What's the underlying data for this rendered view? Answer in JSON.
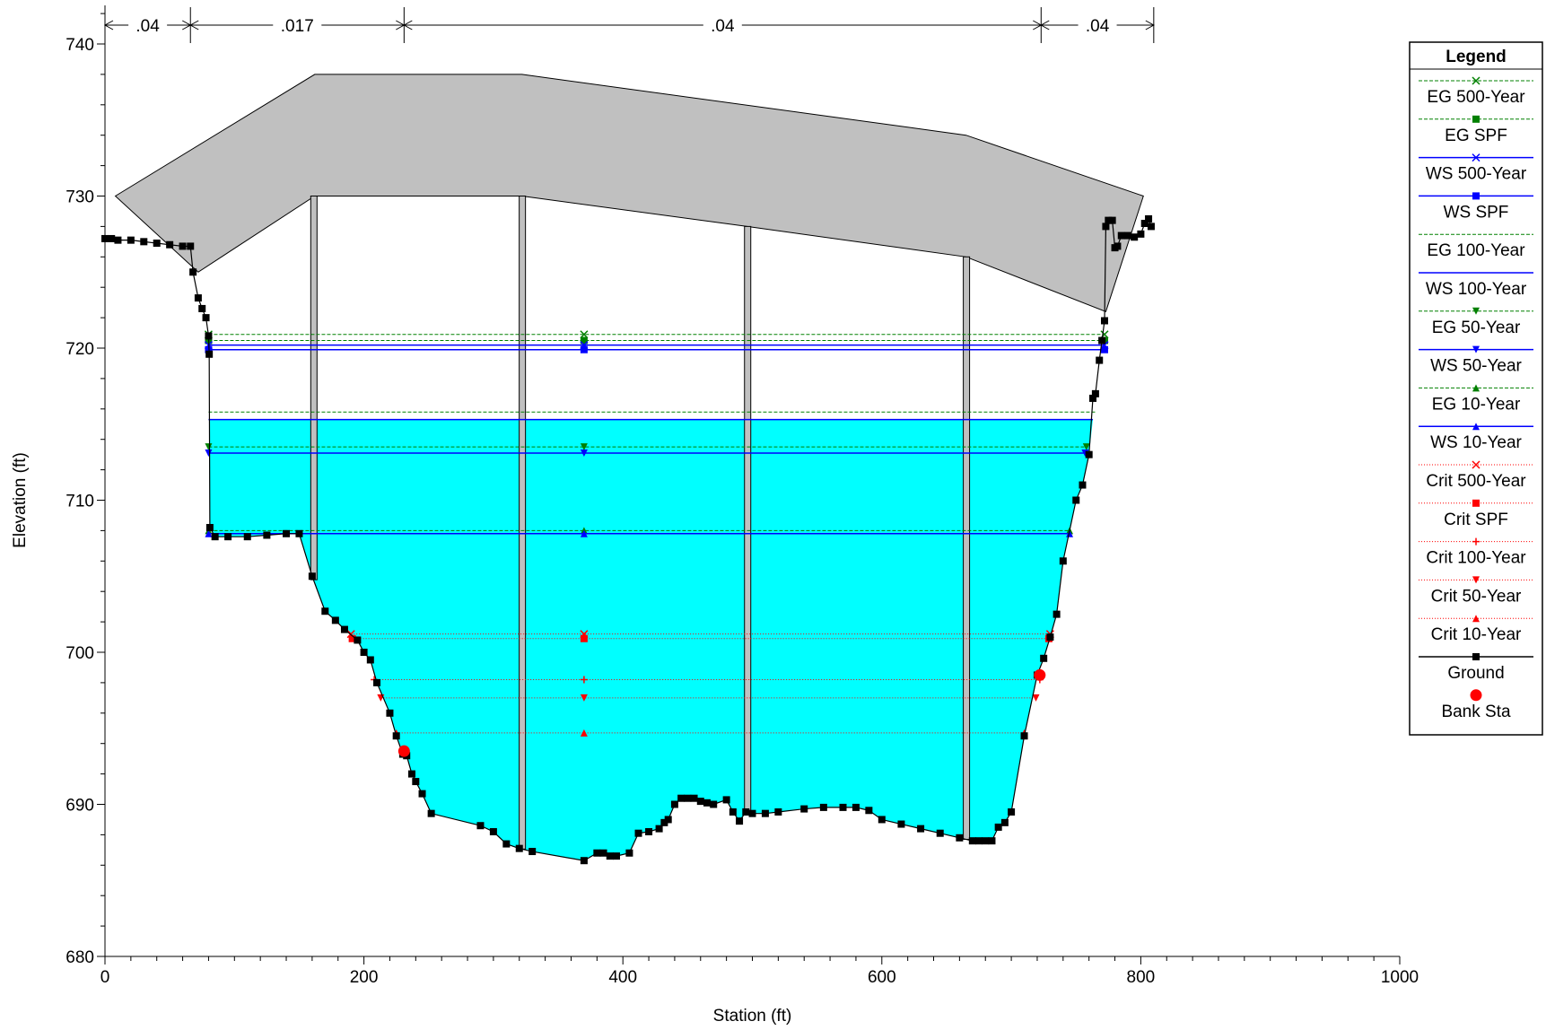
{
  "colors": {
    "water": "#00ffff",
    "bridge": "#c0c0c0",
    "eg": "#008000",
    "ws": "#0000ff",
    "crit": "#ff0000",
    "ground": "#000000",
    "bank": "#ff0000"
  },
  "chart_data": {
    "type": "line",
    "xlabel": "Station (ft)",
    "ylabel": "Elevation (ft)",
    "xlim": [
      0,
      1000
    ],
    "ylim": [
      680,
      743
    ],
    "x_ticks": [
      0,
      200,
      400,
      600,
      800,
      1000
    ],
    "y_ticks": [
      680,
      690,
      700,
      710,
      720,
      730,
      740
    ],
    "grid": false,
    "legend_position": "right",
    "legend_title": "Legend",
    "manning_values": [
      {
        "label": ".04",
        "from": 0,
        "to": 66
      },
      {
        "label": ".017",
        "from": 66,
        "to": 231
      },
      {
        "label": ".04",
        "from": 231,
        "to": 723
      },
      {
        "label": ".04",
        "from": 723,
        "to": 810
      }
    ],
    "ground": {
      "x": [
        0,
        5,
        10,
        20,
        30,
        40,
        50,
        60,
        66,
        68,
        72,
        75,
        78,
        80,
        80.5,
        81,
        85,
        95,
        110,
        125,
        140,
        150,
        160,
        170,
        178,
        185,
        195,
        200,
        205,
        210,
        220,
        225,
        230,
        233,
        237,
        240,
        245,
        252,
        290,
        300,
        310,
        320,
        330,
        370,
        380,
        385,
        390,
        395,
        405,
        412,
        420,
        428,
        432,
        435,
        440,
        445,
        450,
        455,
        460,
        465,
        470,
        480,
        485,
        490,
        495,
        500,
        510,
        520,
        540,
        555,
        570,
        580,
        590,
        600,
        615,
        630,
        645,
        660,
        670,
        675,
        680,
        685,
        690,
        695,
        700,
        710,
        720,
        725,
        730,
        735,
        740,
        750,
        755,
        760,
        763,
        765,
        768,
        770,
        772,
        773,
        775,
        778,
        780,
        782,
        785,
        790,
        795,
        800,
        803,
        806,
        808
      ],
      "y": [
        727.2,
        727.2,
        727.1,
        727.1,
        727.0,
        726.9,
        726.8,
        726.7,
        726.7,
        725.0,
        723.3,
        722.6,
        722.0,
        720.8,
        719.6,
        708.2,
        707.6,
        707.6,
        707.6,
        707.7,
        707.8,
        707.8,
        705.0,
        702.7,
        702.1,
        701.5,
        700.8,
        700.0,
        699.5,
        698.0,
        696.0,
        694.5,
        693.3,
        693.2,
        692.0,
        691.5,
        690.7,
        689.4,
        688.6,
        688.2,
        687.4,
        687.1,
        686.9,
        686.3,
        686.8,
        686.8,
        686.6,
        686.6,
        686.8,
        688.1,
        688.2,
        688.4,
        688.8,
        689.0,
        690.0,
        690.4,
        690.4,
        690.4,
        690.2,
        690.1,
        690.0,
        690.3,
        689.5,
        688.9,
        689.5,
        689.4,
        689.4,
        689.5,
        689.7,
        689.8,
        689.8,
        689.8,
        689.6,
        689.0,
        688.7,
        688.4,
        688.1,
        687.8,
        687.6,
        687.6,
        687.6,
        687.6,
        688.5,
        688.8,
        689.5,
        694.5,
        698.5,
        699.6,
        701.0,
        702.5,
        706.0,
        710.0,
        711.0,
        713.0,
        716.7,
        717.0,
        719.2,
        720.5,
        721.8,
        728.0,
        728.4,
        728.4,
        726.6,
        726.7,
        727.4,
        727.4,
        727.3,
        727.5,
        728.2,
        728.5,
        728.0
      ],
      "name": "Ground"
    },
    "bank_stations": [
      {
        "x": 231,
        "y": 693.5
      },
      {
        "x": 722,
        "y": 698.5
      }
    ],
    "bridge": {
      "top_chord": {
        "x": [
          8,
          162,
          322,
          665,
          802
        ],
        "y": [
          730,
          738,
          738,
          734,
          730
        ]
      },
      "low_chord": {
        "x": [
          72,
          162,
          322,
          496,
          665,
          773
        ],
        "y": [
          725,
          730,
          730,
          728,
          726,
          722.4
        ]
      },
      "piers": [
        {
          "x": 161,
          "width": 6,
          "top": 730
        },
        {
          "x": 322,
          "width": 6,
          "top": 730
        },
        {
          "x": 496,
          "width": 6,
          "top": 728
        },
        {
          "x": 665,
          "width": 6,
          "top": 726
        }
      ]
    },
    "water_surface_fill": {
      "x_left": 80,
      "x_right": 763,
      "elevation": 715.3
    },
    "series": [
      {
        "name": "EG 500-Year",
        "group": "eg",
        "marker": "x",
        "y": 720.9,
        "x": [
          80,
          772
        ]
      },
      {
        "name": "EG SPF",
        "group": "eg",
        "marker": "square",
        "y": 720.5,
        "x": [
          80,
          772
        ]
      },
      {
        "name": "WS 500-Year",
        "group": "ws",
        "marker": "x",
        "y": 720.2,
        "x": [
          80,
          772
        ]
      },
      {
        "name": "WS SPF",
        "group": "ws",
        "marker": "square",
        "y": 719.9,
        "x": [
          80,
          772
        ]
      },
      {
        "name": "EG 100-Year",
        "group": "eg",
        "marker": "none",
        "y": 715.8,
        "x": [
          80,
          765
        ]
      },
      {
        "name": "WS 100-Year",
        "group": "ws",
        "marker": "none",
        "y": 715.3,
        "x": [
          80,
          763
        ]
      },
      {
        "name": "EG 50-Year",
        "group": "eg",
        "marker": "triangle-down",
        "y": 713.5,
        "x": [
          80,
          758
        ]
      },
      {
        "name": "WS 50-Year",
        "group": "ws",
        "marker": "triangle-down",
        "y": 713.1,
        "x": [
          80,
          757
        ]
      },
      {
        "name": "EG 10-Year",
        "group": "eg",
        "marker": "triangle-up",
        "y": 708.0,
        "x": [
          80,
          745
        ]
      },
      {
        "name": "WS 10-Year",
        "group": "ws",
        "marker": "triangle-up",
        "y": 707.8,
        "x": [
          80,
          745
        ]
      },
      {
        "name": "Crit 500-Year",
        "group": "crit",
        "marker": "x",
        "y": 701.2,
        "x": [
          190,
          730
        ]
      },
      {
        "name": "Crit SPF",
        "group": "crit",
        "marker": "square",
        "y": 700.9,
        "x": [
          191,
          729
        ]
      },
      {
        "name": "Crit 100-Year",
        "group": "crit",
        "marker": "plus",
        "y": 698.2,
        "x": [
          208,
          722
        ]
      },
      {
        "name": "Crit 50-Year",
        "group": "crit",
        "marker": "triangle-down",
        "y": 697.0,
        "x": [
          213,
          719
        ]
      },
      {
        "name": "Crit 10-Year",
        "group": "crit",
        "marker": "triangle-up",
        "y": 694.7,
        "x": [
          225,
          710
        ]
      }
    ],
    "legend": [
      {
        "label": "EG 500-Year",
        "line": "eg",
        "marker": "x"
      },
      {
        "label": "EG SPF",
        "line": "eg",
        "marker": "square"
      },
      {
        "label": "WS 500-Year",
        "line": "ws",
        "marker": "x"
      },
      {
        "label": "WS SPF",
        "line": "ws",
        "marker": "square"
      },
      {
        "label": "EG 100-Year",
        "line": "eg",
        "marker": "none"
      },
      {
        "label": "WS 100-Year",
        "line": "ws",
        "marker": "none"
      },
      {
        "label": "EG 50-Year",
        "line": "eg",
        "marker": "triangle-down"
      },
      {
        "label": "WS 50-Year",
        "line": "ws",
        "marker": "triangle-down"
      },
      {
        "label": "EG 10-Year",
        "line": "eg",
        "marker": "triangle-up"
      },
      {
        "label": "WS 10-Year",
        "line": "ws",
        "marker": "triangle-up"
      },
      {
        "label": "Crit 500-Year",
        "line": "crit",
        "marker": "x"
      },
      {
        "label": "Crit SPF",
        "line": "crit",
        "marker": "square"
      },
      {
        "label": "Crit 100-Year",
        "line": "crit",
        "marker": "plus"
      },
      {
        "label": "Crit 50-Year",
        "line": "crit",
        "marker": "triangle-down"
      },
      {
        "label": "Crit 10-Year",
        "line": "crit",
        "marker": "triangle-up"
      },
      {
        "label": "Ground",
        "line": "ground",
        "marker": "square"
      },
      {
        "label": "Bank Sta",
        "line": "none",
        "marker": "circle"
      }
    ]
  }
}
